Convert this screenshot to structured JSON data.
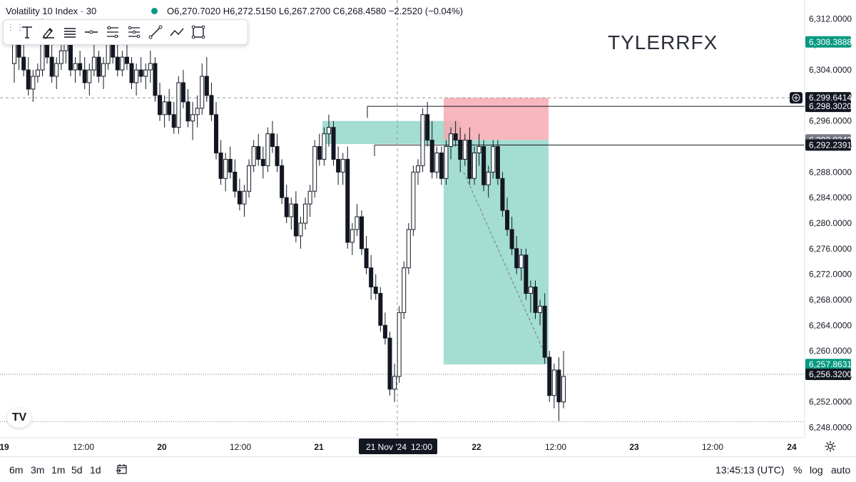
{
  "legend": {
    "symbol": "Volatility 10 Index · 30",
    "ohlc": "O6,270.7020 H6,272.5150 L6,267.2700 C6,268.4580 −2.2520 (−0.04%)"
  },
  "watermark": "TYLERRFX",
  "toolbar": {
    "tools": [
      "text-icon",
      "brush-icon",
      "lines-icon",
      "horizontal-line-icon",
      "channel-icon",
      "fib-icon",
      "trendline-icon",
      "path-icon",
      "rectangle-icon"
    ]
  },
  "bottom": {
    "timeframes": [
      "6m",
      "3m",
      "1m",
      "5d",
      "1d"
    ],
    "clock": "13:45:13 (UTC)",
    "options": [
      "%",
      "log",
      "auto"
    ]
  },
  "chart_data": {
    "type": "candlestick",
    "symbol": "Volatility 10 Index",
    "timeframe": "30",
    "ylim": [
      6247.5,
      6313.5
    ],
    "y_ticks": [
      "6,248.0000",
      "6,252.0000",
      "6,256.0000",
      "6,260.0000",
      "6,264.0000",
      "6,268.0000",
      "6,272.0000",
      "6,276.0000",
      "6,280.0000",
      "6,284.0000",
      "6,288.0000",
      "6,292.0000",
      "6,296.0000",
      "6,300.0000",
      "6,304.0000",
      "6,308.0000",
      "6,312.0000"
    ],
    "x_ticks": [
      "19",
      "12:00",
      "20",
      "12:00",
      "21",
      "12:00",
      "22",
      "12:00",
      "23",
      "12:00",
      "24"
    ],
    "crosshair_x_label": "21 Nov '24",
    "crosshair_time_label": "12:00",
    "price_labels": [
      {
        "text": "6,308.3888",
        "value": 6308.3888,
        "color": "#089981"
      },
      {
        "text": "6,299.6414",
        "value": 6299.6414,
        "color": "#131722"
      },
      {
        "text": "6,298.3020",
        "value": 6298.302,
        "color": "#131722"
      },
      {
        "text": "6,293.0343",
        "value": 6293.0343,
        "color": "#787b86"
      },
      {
        "text": "6,292.2391",
        "value": 6292.2391,
        "color": "#131722"
      },
      {
        "text": "6,257.8631",
        "value": 6257.8631,
        "color": "#089981"
      },
      {
        "text": "6,256.3200",
        "value": 6256.32,
        "color": "#131722"
      }
    ],
    "position": {
      "entry": 6293.0343,
      "stop": 6299.6414,
      "target": 6257.8631
    },
    "demand_zone": [
      6292.4,
      6296.0
    ],
    "candles": [
      [
        6305,
        6309,
        6302,
        6308
      ],
      [
        6308,
        6310,
        6304,
        6306
      ],
      [
        6306,
        6308,
        6303,
        6304
      ],
      [
        6304,
        6306,
        6300,
        6301
      ],
      [
        6301,
        6304,
        6299,
        6303
      ],
      [
        6303,
        6305,
        6302,
        6304
      ],
      [
        6304,
        6312,
        6303,
        6310
      ],
      [
        6310,
        6311,
        6305,
        6306
      ],
      [
        6306,
        6308,
        6302,
        6303
      ],
      [
        6303,
        6306,
        6301,
        6305
      ],
      [
        6305,
        6309,
        6304,
        6307
      ],
      [
        6307,
        6310,
        6305,
        6308
      ],
      [
        6308,
        6309,
        6303,
        6304
      ],
      [
        6304,
        6306,
        6302,
        6305
      ],
      [
        6305,
        6307,
        6303,
        6304
      ],
      [
        6304,
        6306,
        6301,
        6302
      ],
      [
        6302,
        6305,
        6300,
        6304
      ],
      [
        6304,
        6308,
        6303,
        6306
      ],
      [
        6306,
        6307,
        6302,
        6303
      ],
      [
        6303,
        6306,
        6301,
        6305
      ],
      [
        6305,
        6309,
        6304,
        6308
      ],
      [
        6308,
        6310,
        6305,
        6306
      ],
      [
        6306,
        6308,
        6303,
        6304
      ],
      [
        6304,
        6307,
        6303,
        6306
      ],
      [
        6306,
        6308,
        6304,
        6305
      ],
      [
        6305,
        6306,
        6301,
        6302
      ],
      [
        6302,
        6305,
        6300,
        6304
      ],
      [
        6304,
        6306,
        6302,
        6303
      ],
      [
        6303,
        6305,
        6301,
        6304
      ],
      [
        6304,
        6307,
        6302,
        6305
      ],
      [
        6305,
        6306,
        6299,
        6300
      ],
      [
        6300,
        6302,
        6296,
        6297
      ],
      [
        6297,
        6300,
        6295,
        6299
      ],
      [
        6299,
        6301,
        6296,
        6297
      ],
      [
        6297,
        6299,
        6294,
        6295
      ],
      [
        6295,
        6303,
        6294,
        6302
      ],
      [
        6302,
        6304,
        6298,
        6299
      ],
      [
        6299,
        6301,
        6295,
        6296
      ],
      [
        6296,
        6299,
        6293,
        6297
      ],
      [
        6297,
        6300,
        6295,
        6298
      ],
      [
        6298,
        6305,
        6297,
        6303
      ],
      [
        6303,
        6306,
        6299,
        6300
      ],
      [
        6300,
        6302,
        6296,
        6297
      ],
      [
        6297,
        6299,
        6290,
        6291
      ],
      [
        6291,
        6293,
        6286,
        6287
      ],
      [
        6287,
        6291,
        6285,
        6290
      ],
      [
        6290,
        6292,
        6287,
        6288
      ],
      [
        6288,
        6290,
        6284,
        6285
      ],
      [
        6285,
        6287,
        6282,
        6283
      ],
      [
        6283,
        6286,
        6281,
        6285
      ],
      [
        6285,
        6290,
        6284,
        6289
      ],
      [
        6289,
        6293,
        6288,
        6292
      ],
      [
        6292,
        6294,
        6289,
        6290
      ],
      [
        6290,
        6292,
        6287,
        6289
      ],
      [
        6289,
        6295,
        6288,
        6294
      ],
      [
        6294,
        6296,
        6291,
        6292
      ],
      [
        6292,
        6294,
        6288,
        6289
      ],
      [
        6289,
        6290,
        6283,
        6284
      ],
      [
        6284,
        6286,
        6280,
        6281
      ],
      [
        6281,
        6284,
        6279,
        6283
      ],
      [
        6283,
        6285,
        6277,
        6278
      ],
      [
        6278,
        6281,
        6276,
        6280
      ],
      [
        6280,
        6284,
        6279,
        6283
      ],
      [
        6283,
        6286,
        6281,
        6285
      ],
      [
        6285,
        6293,
        6284,
        6292
      ],
      [
        6292,
        6294,
        6289,
        6290
      ],
      [
        6290,
        6295,
        6289,
        6294
      ],
      [
        6294,
        6297,
        6292,
        6295
      ],
      [
        6295,
        6296,
        6289,
        6290
      ],
      [
        6290,
        6292,
        6286,
        6288
      ],
      [
        6288,
        6291,
        6286,
        6290
      ],
      [
        6290,
        6292,
        6276,
        6277
      ],
      [
        6277,
        6280,
        6275,
        6279
      ],
      [
        6279,
        6283,
        6278,
        6281
      ],
      [
        6281,
        6282,
        6275,
        6276
      ],
      [
        6276,
        6278,
        6272,
        6273
      ],
      [
        6273,
        6275,
        6268,
        6270
      ],
      [
        6270,
        6272,
        6268,
        6269
      ],
      [
        6269,
        6270,
        6263,
        6264
      ],
      [
        6264,
        6266,
        6261,
        6262
      ],
      [
        6262,
        6263,
        6253,
        6254
      ],
      [
        6254,
        6258,
        6252,
        6256
      ],
      [
        6256,
        6267,
        6255,
        6266
      ],
      [
        6266,
        6274,
        6265,
        6273
      ],
      [
        6273,
        6280,
        6272,
        6279
      ],
      [
        6279,
        6289,
        6278,
        6288
      ],
      [
        6288,
        6290,
        6286,
        6289
      ],
      [
        6289,
        6298,
        6288,
        6297
      ],
      [
        6297,
        6299,
        6292,
        6293
      ],
      [
        6293,
        6296,
        6287,
        6288
      ],
      [
        6288,
        6292,
        6287,
        6291
      ],
      [
        6291,
        6292,
        6286,
        6287
      ],
      [
        6287,
        6293,
        6286,
        6292
      ],
      [
        6292,
        6295,
        6290,
        6294
      ],
      [
        6294,
        6296,
        6292,
        6293
      ],
      [
        6293,
        6295,
        6288,
        6290
      ],
      [
        6290,
        6294,
        6289,
        6293
      ],
      [
        6293,
        6295,
        6286,
        6287
      ],
      [
        6287,
        6292,
        6286,
        6291
      ],
      [
        6291,
        6294,
        6289,
        6292
      ],
      [
        6292,
        6293,
        6285,
        6286
      ],
      [
        6286,
        6289,
        6284,
        6288
      ],
      [
        6288,
        6293,
        6287,
        6292
      ],
      [
        6292,
        6293,
        6286,
        6287
      ],
      [
        6287,
        6288,
        6281,
        6282
      ],
      [
        6282,
        6284,
        6278,
        6279
      ],
      [
        6279,
        6281,
        6275,
        6276
      ],
      [
        6276,
        6278,
        6272,
        6273
      ],
      [
        6273,
        6276,
        6271,
        6275
      ],
      [
        6275,
        6276,
        6268,
        6269
      ],
      [
        6269,
        6271,
        6266,
        6270
      ],
      [
        6270,
        6271,
        6265,
        6266
      ],
      [
        6266,
        6268,
        6264,
        6267
      ],
      [
        6267,
        6269,
        6258,
        6259
      ],
      [
        6259,
        6260,
        6252,
        6253
      ],
      [
        6253,
        6258,
        6251,
        6257
      ],
      [
        6257,
        6259,
        6249,
        6252
      ],
      [
        6252,
        6260,
        6251,
        6256
      ]
    ]
  }
}
